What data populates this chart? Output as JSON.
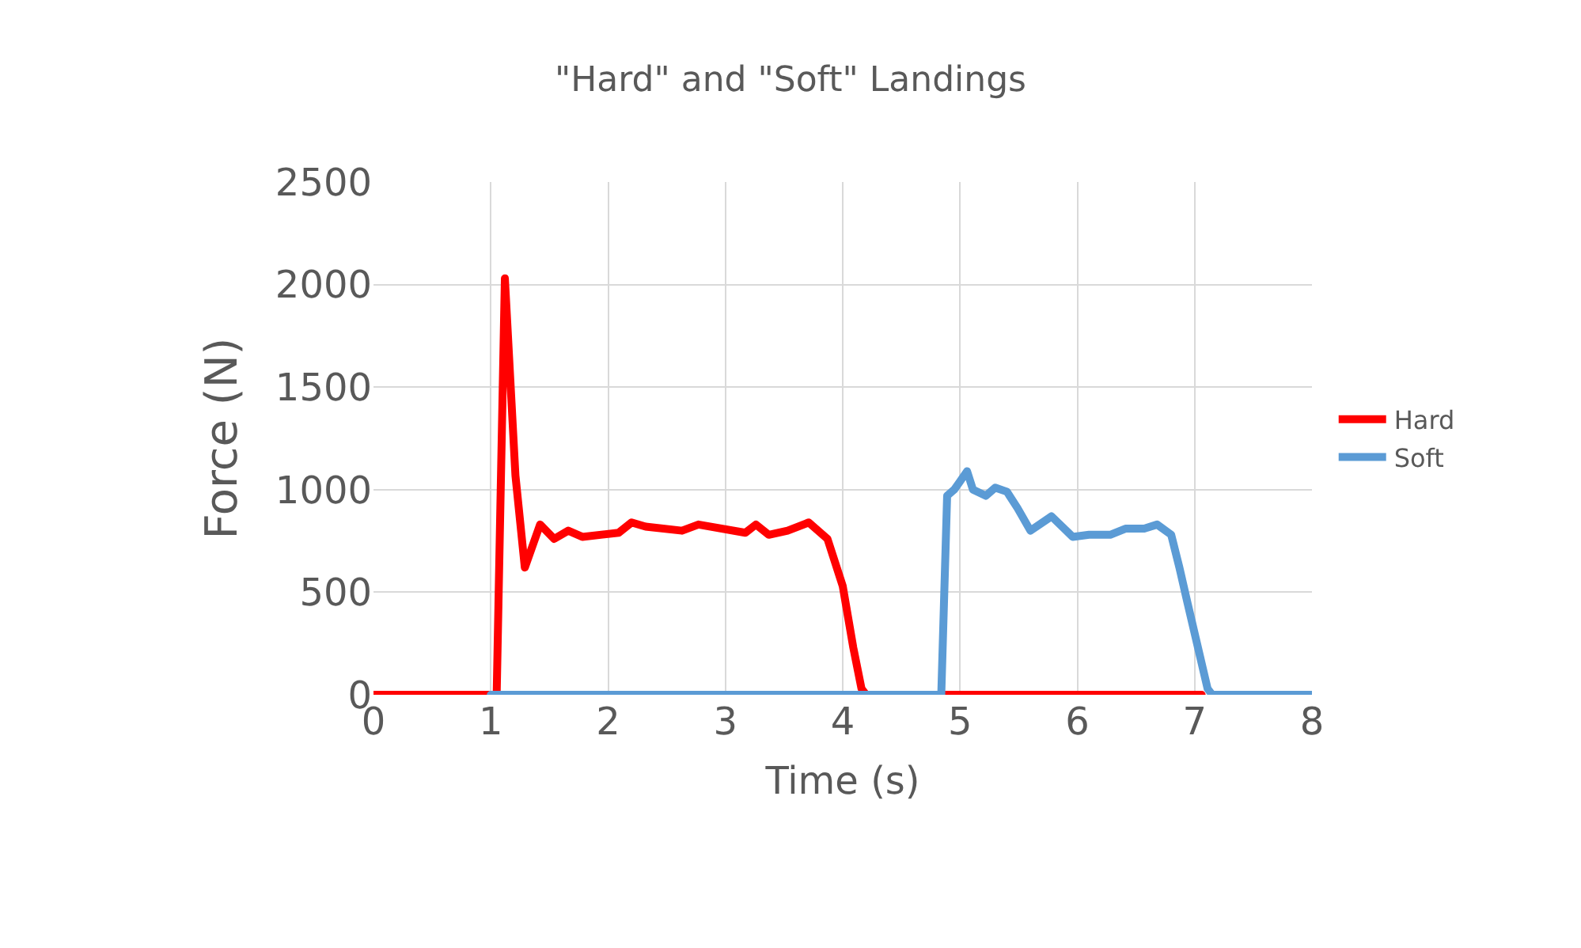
{
  "chart_data": {
    "type": "line",
    "title": "\"Hard\" and \"Soft\" Landings",
    "xlabel": "Time (s)",
    "ylabel": "Force (N)",
    "xlim": [
      0,
      8
    ],
    "xticks": [
      0,
      1,
      2,
      3,
      4,
      5,
      6,
      7,
      8
    ],
    "ylim": [
      0,
      2500
    ],
    "yticks": [
      0,
      500,
      1000,
      1500,
      2000,
      2500
    ],
    "grid": true,
    "legend": "right",
    "marker": "none",
    "line_style": "solid",
    "series": [
      {
        "name": "Hard",
        "color": "#ff0000",
        "x": [
          0,
          1.0,
          1.05,
          1.12,
          1.21,
          1.29,
          1.42,
          1.54,
          1.66,
          1.78,
          2.09,
          2.2,
          2.32,
          2.63,
          2.77,
          3.17,
          3.26,
          3.37,
          3.53,
          3.71,
          3.87,
          4.0,
          4.09,
          4.16,
          4.2,
          7.06
        ],
        "values": [
          0,
          0,
          0,
          2030,
          1070,
          620,
          830,
          760,
          800,
          770,
          790,
          840,
          820,
          800,
          830,
          790,
          830,
          780,
          800,
          840,
          760,
          530,
          230,
          30,
          0,
          0
        ]
      },
      {
        "name": "Soft",
        "color": "#5b9bd5",
        "x": [
          1.0,
          4.84,
          4.89,
          4.95,
          5.0,
          5.06,
          5.11,
          5.22,
          5.3,
          5.4,
          5.49,
          5.6,
          5.78,
          5.96,
          6.1,
          6.28,
          6.41,
          6.57,
          6.68,
          6.8,
          6.87,
          6.93,
          7.02,
          7.11,
          7.15,
          8
        ],
        "values": [
          0,
          0,
          970,
          1000,
          1040,
          1090,
          1000,
          970,
          1010,
          990,
          910,
          800,
          870,
          770,
          780,
          780,
          810,
          810,
          830,
          780,
          620,
          470,
          250,
          30,
          0,
          0
        ]
      }
    ]
  }
}
